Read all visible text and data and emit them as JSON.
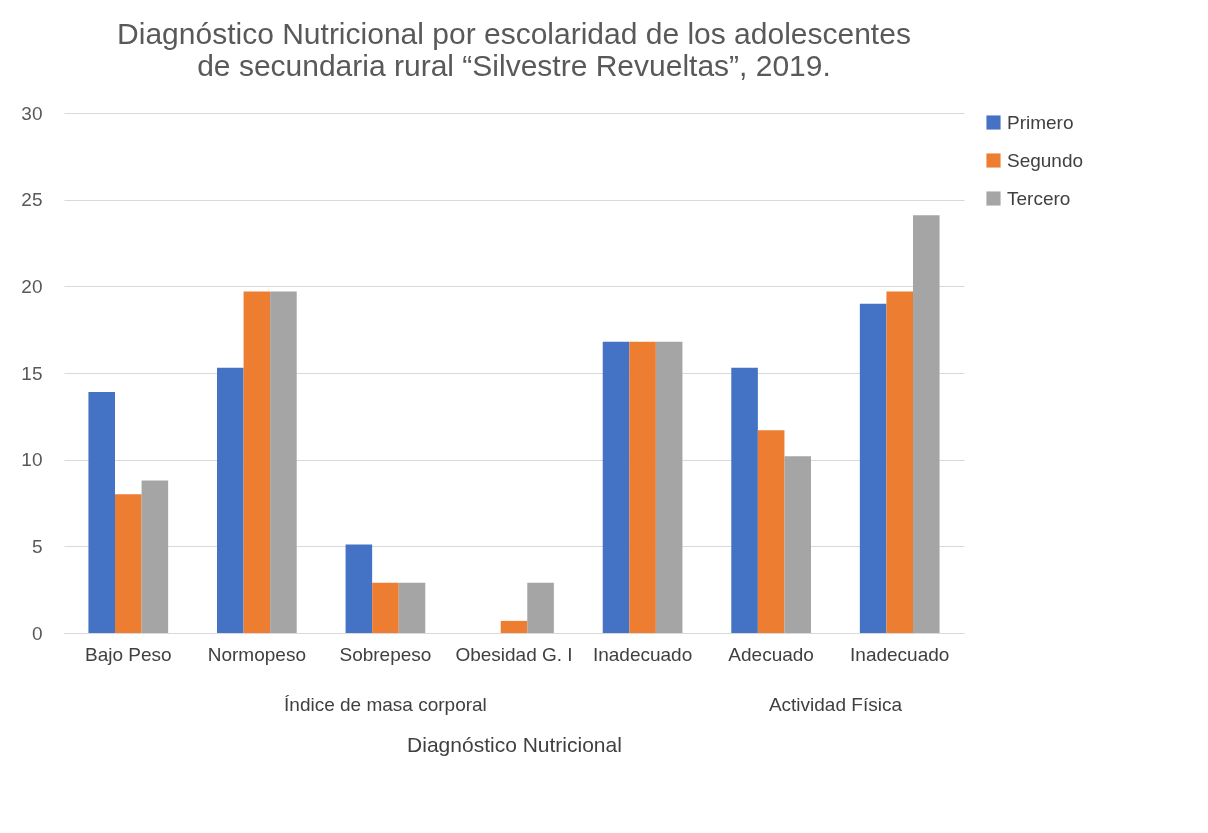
{
  "chart_data": {
    "type": "bar",
    "title": "Diagnóstico Nutricional por escolaridad de los adolescentes de secundaria rural “Silvestre Revueltas”, 2019.",
    "xlabel": "Diagnóstico Nutricional",
    "annotations": [
      "Índice de masa corporal",
      "Actividad Física"
    ],
    "categories": [
      "Bajo Peso",
      "Normopeso",
      "Sobrepeso",
      "Obesidad G. I",
      "Inadecuado",
      "Adecuado",
      "Inadecuado"
    ],
    "series": [
      {
        "name": "Primero",
        "color": "#4472c4",
        "values": [
          13.9,
          15.3,
          5.1,
          0,
          16.8,
          15.3,
          19.0
        ]
      },
      {
        "name": "Segundo",
        "color": "#ed7d31",
        "values": [
          8.0,
          19.7,
          2.9,
          0.7,
          16.8,
          11.7,
          19.7
        ]
      },
      {
        "name": "Tercero",
        "color": "#a5a5a5",
        "values": [
          8.8,
          19.7,
          2.9,
          2.9,
          16.8,
          10.2,
          24.1
        ]
      }
    ],
    "ylim": [
      0,
      30
    ],
    "yticks": [
      0,
      5,
      10,
      15,
      20,
      25,
      30
    ],
    "grid": true,
    "legend": "right"
  }
}
